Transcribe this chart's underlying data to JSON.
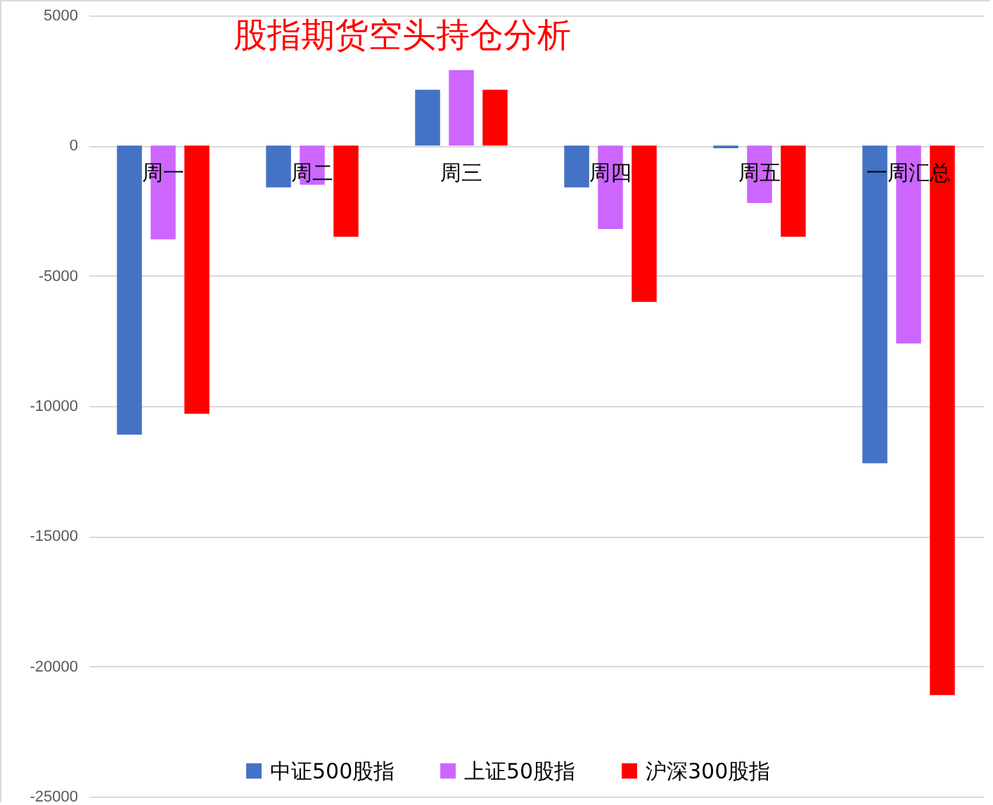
{
  "chart_data": {
    "type": "bar",
    "title": "股指期货空头持仓分析",
    "categories": [
      "周一",
      "周二",
      "周三",
      "周四",
      "周五",
      "一周汇总"
    ],
    "series": [
      {
        "name": "中证500股指",
        "color": "#4472c4",
        "values": [
          -11100,
          -1600,
          2150,
          -1600,
          -100,
          -12200
        ]
      },
      {
        "name": "上证50股指",
        "color": "#cc66ff",
        "values": [
          -3600,
          -1500,
          2900,
          -3200,
          -2200,
          -7600
        ]
      },
      {
        "name": "沪深300股指",
        "color": "#ff0000",
        "values": [
          -10300,
          -3500,
          2150,
          -6000,
          -3500,
          -21100
        ]
      }
    ],
    "ylim": [
      -25000,
      5000
    ],
    "yticks": [
      -25000,
      -20000,
      -15000,
      -10000,
      -5000,
      0,
      5000
    ],
    "grid": "y",
    "legend": "bottom"
  }
}
